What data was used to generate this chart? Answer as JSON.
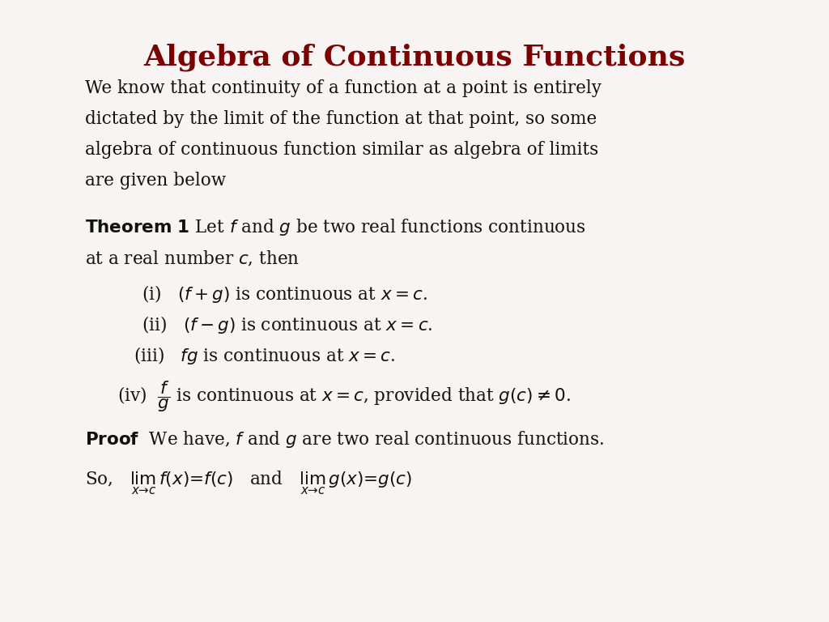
{
  "title": "Algebra of Continuous Functions",
  "bg_color": "#f8f4f4",
  "title_color": "#7B0000",
  "text_color": "#111111",
  "title_fontsize": 26,
  "body_fontsize": 15.5,
  "theorem_fontsize": 15.5,
  "proof_fontsize": 15.5,
  "paragraph1_lines": [
    "We know that continuity of a function at a point is entirely",
    "dictated by the limit of the function at that point, so some",
    "algebra of continuous function similar as algebra of limits",
    "are given below"
  ],
  "theorem_line1": "Let $f$ and $g$ be two real functions continuous",
  "theorem_line2": "at a real number $c$, then",
  "item1": "(i)   $(f + g)$ is continuous at $x = c$.",
  "item2": "(ii)   $(f - g)$ is continuous at $x = c$.",
  "item3": "(iii)   $fg$ is continuous at $x = c$.",
  "item4_pre": "(iv)  ",
  "item4_post": " is continuous at $x = c$, provided that $g(c) \\neq 0$.",
  "proof_word": "Proof",
  "proof_rest": "  We have, $f$ and $g$ are two real continuous functions.",
  "so_line": "So,   $\\lim_{x \\to c}\\, f(x) = f(c)$   and   $\\lim_{x \\to c}\\, g(x) = g(c)$"
}
